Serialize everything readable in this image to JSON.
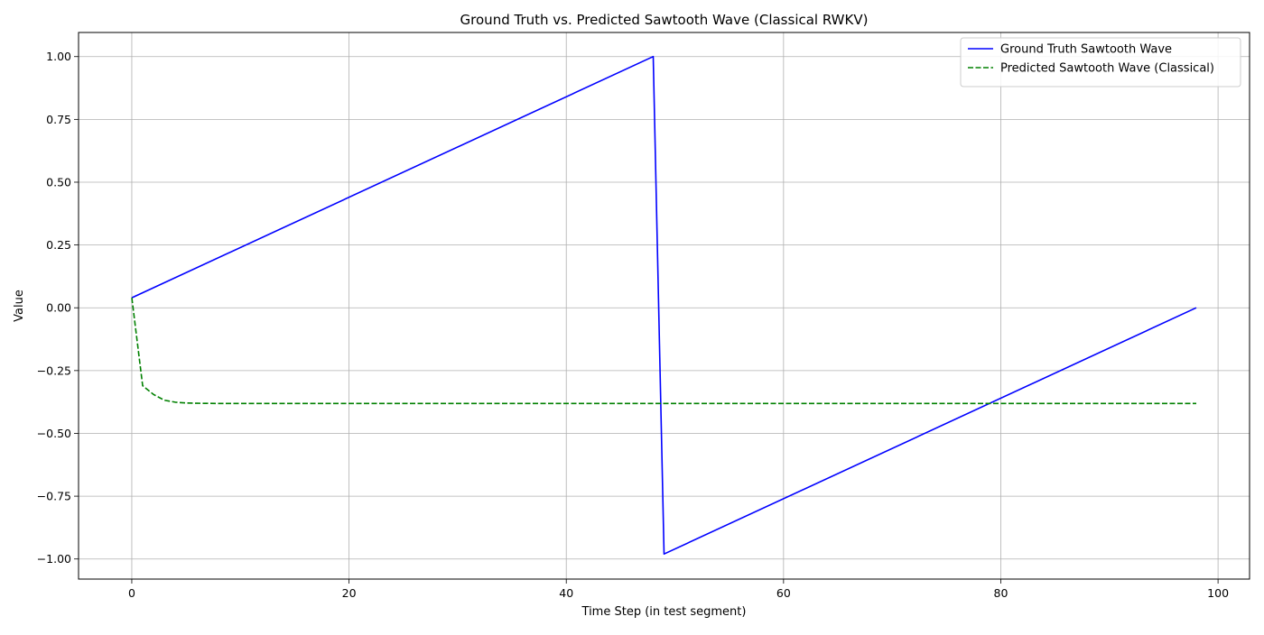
{
  "chart_data": {
    "type": "line",
    "title": "Ground Truth vs. Predicted Sawtooth Wave (Classical RWKV)",
    "xlabel": "Time Step (in test segment)",
    "ylabel": "Value",
    "xlim": [
      -4.9,
      102.9
    ],
    "ylim": [
      -1.08,
      1.096
    ],
    "xticks": [
      0,
      20,
      40,
      60,
      80,
      100
    ],
    "yticks": [
      -1.0,
      -0.75,
      -0.5,
      -0.25,
      0.0,
      0.25,
      0.5,
      0.75,
      1.0
    ],
    "xtick_labels": [
      "0",
      "20",
      "40",
      "60",
      "80",
      "100"
    ],
    "ytick_labels": [
      "−1.00",
      "−0.75",
      "−0.50",
      "−0.25",
      "0.00",
      "0.25",
      "0.50",
      "0.75",
      "1.00"
    ],
    "grid": true,
    "legend_position": "top-right",
    "series": [
      {
        "name": "Ground Truth Sawtooth Wave",
        "color": "#0000ff",
        "style": "solid",
        "points": [
          [
            0,
            0.04
          ],
          [
            48,
            1.0
          ],
          [
            49,
            -0.98
          ],
          [
            98,
            0.0
          ]
        ]
      },
      {
        "name": "Predicted Sawtooth Wave (Classical)",
        "color": "#008000",
        "style": "dashed",
        "points": [
          [
            0,
            0.04
          ],
          [
            1,
            -0.31
          ],
          [
            2,
            -0.345
          ],
          [
            3,
            -0.368
          ],
          [
            4,
            -0.376
          ],
          [
            5,
            -0.379
          ],
          [
            6,
            -0.38
          ],
          [
            8,
            -0.381
          ],
          [
            12,
            -0.381
          ],
          [
            98,
            -0.381
          ]
        ]
      }
    ]
  }
}
